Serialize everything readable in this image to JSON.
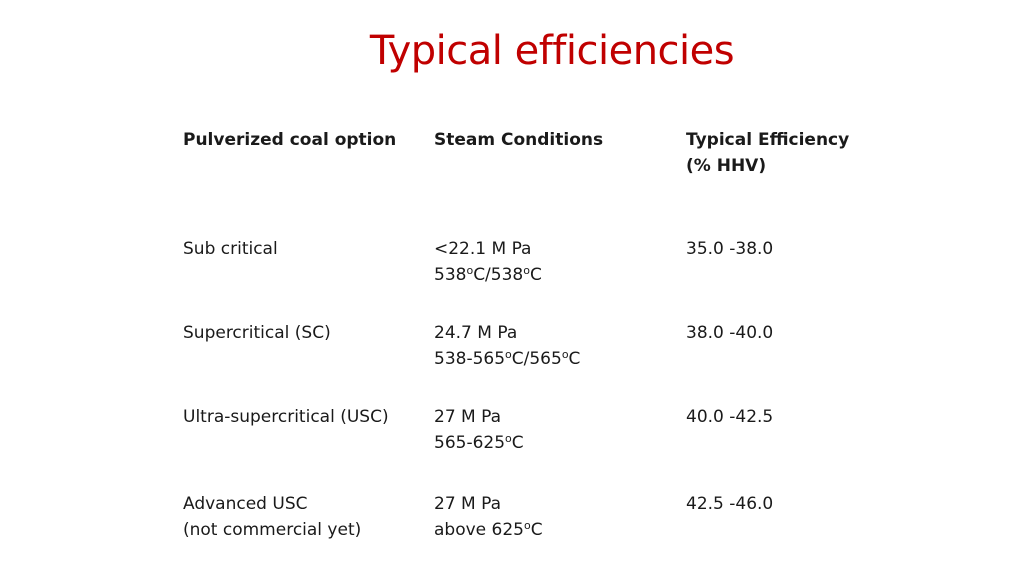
{
  "slide": {
    "title": "Typical efficiencies",
    "title_color": "#c00000",
    "headers": {
      "option": "Pulverized coal option",
      "steam": "Steam Conditions",
      "efficiency_line1": "Typical Efficiency",
      "efficiency_line2": "(% HHV)"
    },
    "rows": [
      {
        "option": [
          "Sub critical"
        ],
        "pressure": "<22.1 M Pa",
        "temperature": {
          "prefix": "538",
          "mid_unit": "C/538",
          "end_unit": "C",
          "degree": "o"
        },
        "efficiency": "35.0 -38.0"
      },
      {
        "option": [
          "Supercritical (SC)"
        ],
        "pressure": "24.7 M Pa",
        "temperature": {
          "prefix": "538-565",
          "mid_unit": "C/565",
          "end_unit": "C",
          "degree": "o"
        },
        "efficiency": "38.0 -40.0"
      },
      {
        "option": [
          "Ultra-supercritical (USC)"
        ],
        "pressure": "27 M Pa",
        "temperature": {
          "prefix": "565-625",
          "end_unit": "C",
          "degree": "o"
        },
        "efficiency": "40.0 -42.5"
      },
      {
        "option": [
          "Advanced USC",
          "(not commercial yet)"
        ],
        "pressure": "27 M Pa",
        "temperature": {
          "prefix": "above 625",
          "end_unit": "C",
          "degree": "o"
        },
        "efficiency": "42.5 -46.0"
      }
    ]
  }
}
